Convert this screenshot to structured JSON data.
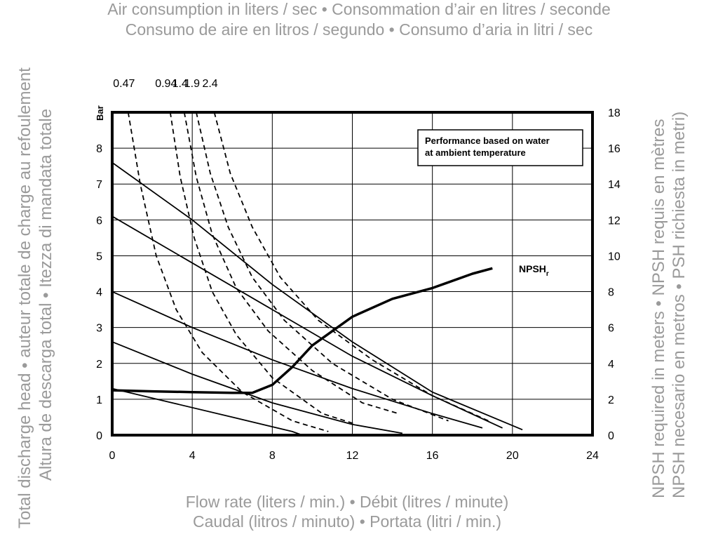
{
  "titles": {
    "line1": "Air consumption in liters / sec • Consommation d’air en litres / seconde",
    "line2": "Consumo de aire en litros / segundo • Consumo d’aria in litri / sec"
  },
  "xlabels": {
    "line1": "Flow rate (liters / min.) • Débit (litres / minute)",
    "line2": "Caudal (litros / minuto) • Portata (litri / min.)"
  },
  "ylabels": {
    "left1": "Total discharge head • auteur totale de charge au refoulement",
    "left2": "Altura de descarga total • Itezza di mandata totale",
    "right1": "NPSH required in meters • NPSH requis en mètres",
    "right2": "NPSH necesario en metros • PSH richiesta in metri)"
  },
  "chart_data": {
    "type": "line",
    "unit_label": "Bar",
    "xlim": [
      0,
      24
    ],
    "ylim": [
      0,
      9
    ],
    "y2lim": [
      0,
      18
    ],
    "x_ticks": [
      "0",
      "4",
      "8",
      "12",
      "16",
      "20",
      "24"
    ],
    "y_ticks": [
      "0",
      "1",
      "2",
      "3",
      "4",
      "5",
      "6",
      "7",
      "8"
    ],
    "y2_ticks": [
      "0",
      "2",
      "4",
      "6",
      "8",
      "10",
      "12",
      "14",
      "16",
      "18"
    ],
    "grid": true,
    "annotation": "Performance based on water\nat ambient temperature",
    "npsh_label": "NPSH",
    "npsh_sub": "r",
    "head_curves": [
      {
        "x": [
          0,
          3,
          6,
          9,
          9.5
        ],
        "y": [
          1.3,
          0.9,
          0.5,
          0.1,
          0
        ]
      },
      {
        "x": [
          0,
          4,
          8,
          12,
          14.5
        ],
        "y": [
          2.6,
          1.7,
          0.9,
          0.3,
          0.05
        ]
      },
      {
        "x": [
          0,
          4,
          8,
          12,
          16,
          18.5
        ],
        "y": [
          4.0,
          3.0,
          2.1,
          1.3,
          0.6,
          0.2
        ]
      },
      {
        "x": [
          0,
          4,
          8,
          12,
          16,
          19.5
        ],
        "y": [
          6.1,
          4.8,
          3.5,
          2.2,
          1.1,
          0.2
        ]
      },
      {
        "x": [
          0,
          4,
          8,
          12,
          16,
          20.5
        ],
        "y": [
          7.6,
          6.0,
          4.2,
          2.6,
          1.2,
          0.15
        ]
      }
    ],
    "air_curves": [
      {
        "name": "0.47",
        "x": [
          0.8,
          1.4,
          2.2,
          3.2,
          4.5,
          6.5,
          9.0,
          10.8
        ],
        "y": [
          9,
          7.0,
          5.0,
          3.5,
          2.3,
          1.2,
          0.4,
          0.1
        ]
      },
      {
        "name": "0.94",
        "x": [
          2.9,
          3.4,
          4.1,
          5.0,
          6.2,
          8.0,
          10.5,
          12.2
        ],
        "y": [
          9,
          7.2,
          5.5,
          4.0,
          2.8,
          1.6,
          0.6,
          0.3
        ]
      },
      {
        "name": "1.4",
        "x": [
          3.6,
          4.2,
          5.0,
          6.2,
          7.8,
          10.0,
          12.5,
          14.3
        ],
        "y": [
          9,
          7.2,
          5.6,
          4.1,
          2.9,
          1.8,
          0.9,
          0.6
        ]
      },
      {
        "name": "1.9",
        "x": [
          4.2,
          4.9,
          5.8,
          7.0,
          8.6,
          11.0,
          14.0,
          16.8
        ],
        "y": [
          9,
          7.3,
          5.8,
          4.4,
          3.2,
          2.0,
          1.0,
          0.4
        ]
      },
      {
        "name": "2.4",
        "x": [
          5.1,
          5.9,
          7.0,
          8.4,
          10.3,
          13.0,
          16.0,
          18.8
        ],
        "y": [
          9,
          7.3,
          5.8,
          4.4,
          3.2,
          2.1,
          1.1,
          0.4
        ]
      }
    ],
    "npsh": {
      "x": [
        0,
        2,
        4,
        6,
        7,
        8,
        9,
        10,
        12,
        14,
        16,
        18,
        19
      ],
      "y": [
        1.25,
        1.22,
        1.2,
        1.18,
        1.18,
        1.4,
        1.9,
        2.5,
        3.3,
        3.8,
        4.1,
        4.5,
        4.65
      ]
    }
  }
}
